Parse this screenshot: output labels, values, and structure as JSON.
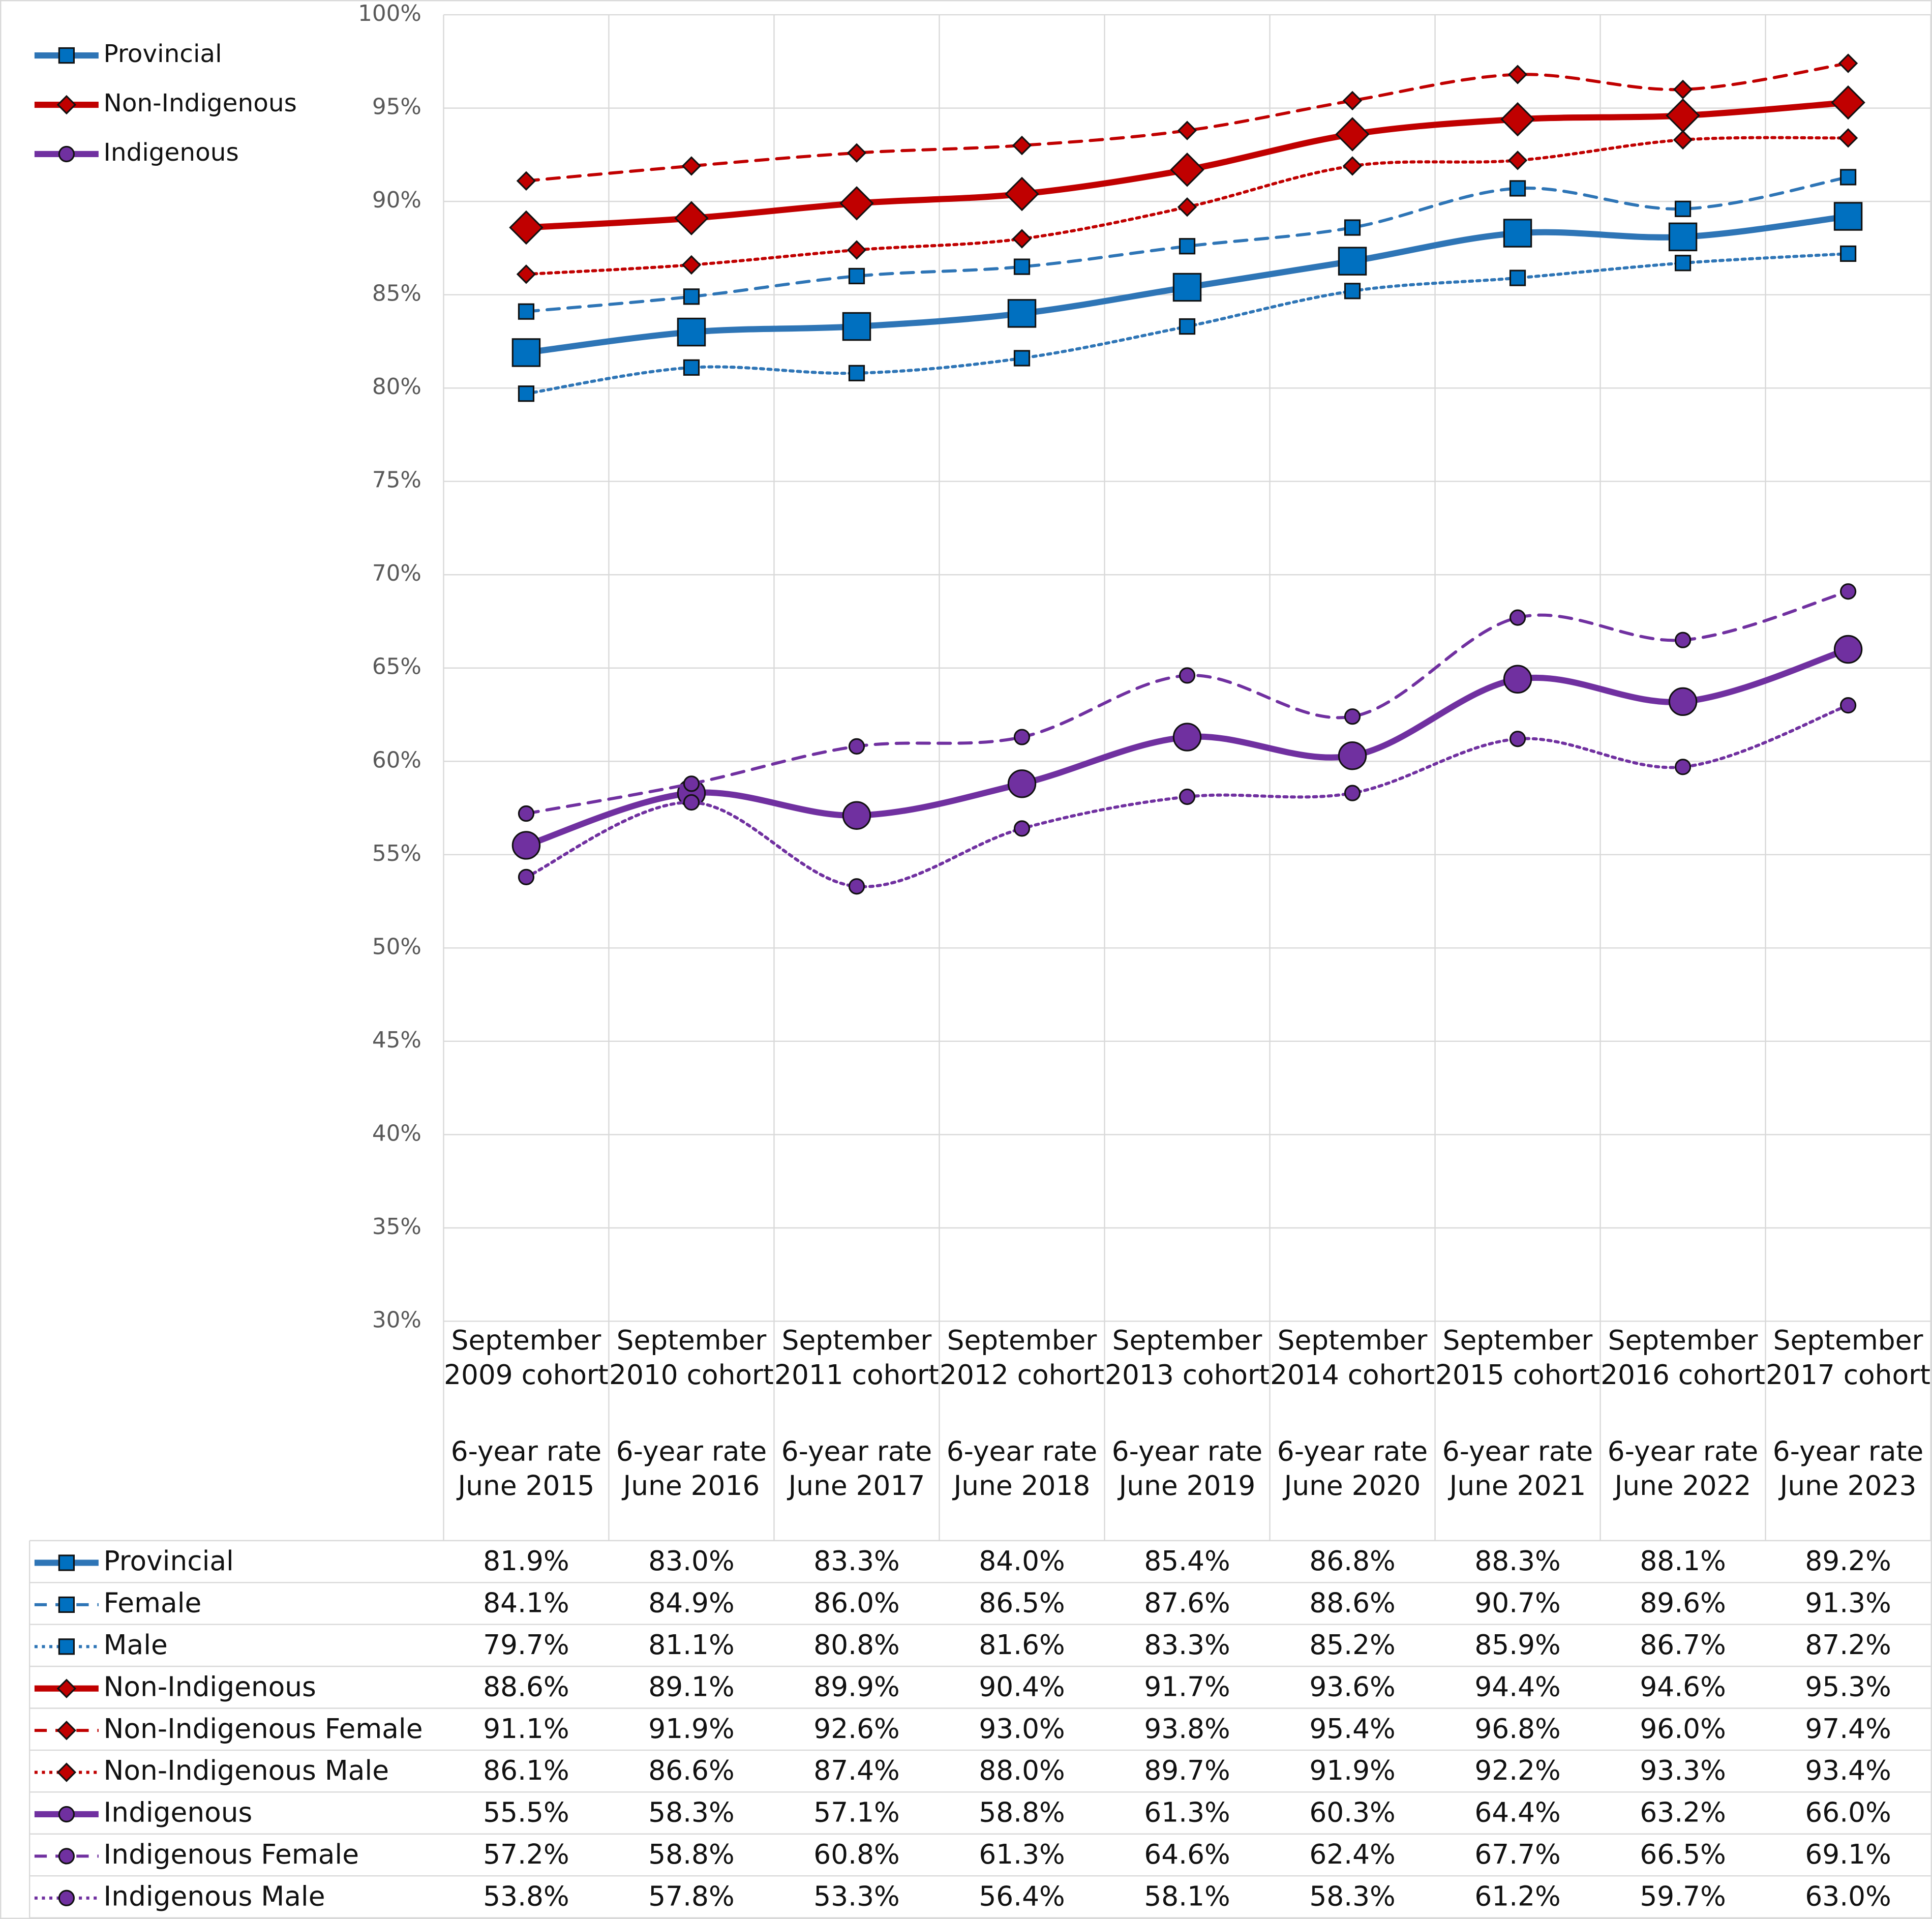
{
  "chart_data": {
    "type": "line",
    "categories": [
      "September 2009 cohort",
      "September 2010 cohort",
      "September 2011 cohort",
      "September 2012 cohort",
      "September 2013 cohort",
      "September 2014 cohort",
      "September 2015 cohort",
      "September 2016 cohort",
      "September 2017 cohort"
    ],
    "category_sublabels": [
      "6-year rate June 2015",
      "6-year rate June 2016",
      "6-year rate June 2017",
      "6-year rate June 2018",
      "6-year rate June 2019",
      "6-year rate June 2020",
      "6-year rate June 2021",
      "6-year rate June 2022",
      "6-year rate June 2023"
    ],
    "ylim": [
      30,
      100
    ],
    "yticks": [
      {
        "value": 30,
        "label": "30%"
      },
      {
        "value": 35,
        "label": "35%"
      },
      {
        "value": 40,
        "label": "40%"
      },
      {
        "value": 45,
        "label": "45%"
      },
      {
        "value": 50,
        "label": "50%"
      },
      {
        "value": 55,
        "label": "55%"
      },
      {
        "value": 60,
        "label": "60%"
      },
      {
        "value": 65,
        "label": "65%"
      },
      {
        "value": 70,
        "label": "70%"
      },
      {
        "value": 75,
        "label": "75%"
      },
      {
        "value": 80,
        "label": "80%"
      },
      {
        "value": 85,
        "label": "85%"
      },
      {
        "value": 90,
        "label": "90%"
      },
      {
        "value": 95,
        "label": "95%"
      },
      {
        "value": 100,
        "label": "100%"
      }
    ],
    "grid": true,
    "legend_position": "upper-left",
    "series": [
      {
        "name": "Provincial",
        "color": "#2E75B6",
        "marker_color": "#0070C0",
        "line_style": "solid",
        "marker": "square",
        "values": [
          81.9,
          83.0,
          83.3,
          84.0,
          85.4,
          86.8,
          88.3,
          88.1,
          89.2
        ],
        "value_labels": [
          "81.9%",
          "83.0%",
          "83.3%",
          "84.0%",
          "85.4%",
          "86.8%",
          "88.3%",
          "88.1%",
          "89.2%"
        ]
      },
      {
        "name": "Female",
        "color": "#2E75B6",
        "marker_color": "#0070C0",
        "line_style": "dashed",
        "marker": "square",
        "values": [
          84.1,
          84.9,
          86.0,
          86.5,
          87.6,
          88.6,
          90.7,
          89.6,
          91.3
        ],
        "value_labels": [
          "84.1%",
          "84.9%",
          "86.0%",
          "86.5%",
          "87.6%",
          "88.6%",
          "90.7%",
          "89.6%",
          "91.3%"
        ]
      },
      {
        "name": "Male",
        "color": "#2E75B6",
        "marker_color": "#0070C0",
        "line_style": "dotted",
        "marker": "square",
        "values": [
          79.7,
          81.1,
          80.8,
          81.6,
          83.3,
          85.2,
          85.9,
          86.7,
          87.2
        ],
        "value_labels": [
          "79.7%",
          "81.1%",
          "80.8%",
          "81.6%",
          "83.3%",
          "85.2%",
          "85.9%",
          "86.7%",
          "87.2%"
        ]
      },
      {
        "name": "Non-Indigenous",
        "color": "#C00000",
        "marker_color": "#C00000",
        "line_style": "solid",
        "marker": "diamond",
        "values": [
          88.6,
          89.1,
          89.9,
          90.4,
          91.7,
          93.6,
          94.4,
          94.6,
          95.3
        ],
        "value_labels": [
          "88.6%",
          "89.1%",
          "89.9%",
          "90.4%",
          "91.7%",
          "93.6%",
          "94.4%",
          "94.6%",
          "95.3%"
        ]
      },
      {
        "name": "Non-Indigenous Female",
        "color": "#C00000",
        "marker_color": "#C00000",
        "line_style": "dashed",
        "marker": "diamond",
        "values": [
          91.1,
          91.9,
          92.6,
          93.0,
          93.8,
          95.4,
          96.8,
          96.0,
          97.4
        ],
        "value_labels": [
          "91.1%",
          "91.9%",
          "92.6%",
          "93.0%",
          "93.8%",
          "95.4%",
          "96.8%",
          "96.0%",
          "97.4%"
        ]
      },
      {
        "name": "Non-Indigenous Male",
        "color": "#C00000",
        "marker_color": "#C00000",
        "line_style": "dotted",
        "marker": "diamond",
        "values": [
          86.1,
          86.6,
          87.4,
          88.0,
          89.7,
          91.9,
          92.2,
          93.3,
          93.4
        ],
        "value_labels": [
          "86.1%",
          "86.6%",
          "87.4%",
          "88.0%",
          "89.7%",
          "91.9%",
          "92.2%",
          "93.3%",
          "93.4%"
        ]
      },
      {
        "name": "Indigenous",
        "color": "#7030A0",
        "marker_color": "#7030A0",
        "line_style": "solid",
        "marker": "circle",
        "values": [
          55.5,
          58.3,
          57.1,
          58.8,
          61.3,
          60.3,
          64.4,
          63.2,
          66.0
        ],
        "value_labels": [
          "55.5%",
          "58.3%",
          "57.1%",
          "58.8%",
          "61.3%",
          "60.3%",
          "64.4%",
          "63.2%",
          "66.0%"
        ]
      },
      {
        "name": "Indigenous Female",
        "color": "#7030A0",
        "marker_color": "#7030A0",
        "line_style": "dashed",
        "marker": "circle",
        "values": [
          57.2,
          58.8,
          60.8,
          61.3,
          64.6,
          62.4,
          67.7,
          66.5,
          69.1
        ],
        "value_labels": [
          "57.2%",
          "58.8%",
          "60.8%",
          "61.3%",
          "64.6%",
          "62.4%",
          "67.7%",
          "66.5%",
          "69.1%"
        ]
      },
      {
        "name": "Indigenous Male",
        "color": "#7030A0",
        "marker_color": "#7030A0",
        "line_style": "dotted",
        "marker": "circle",
        "values": [
          53.8,
          57.8,
          53.3,
          56.4,
          58.1,
          58.3,
          61.2,
          59.7,
          63.0
        ],
        "value_labels": [
          "53.8%",
          "57.8%",
          "53.3%",
          "56.4%",
          "58.1%",
          "58.3%",
          "61.2%",
          "59.7%",
          "63.0%"
        ]
      }
    ]
  }
}
